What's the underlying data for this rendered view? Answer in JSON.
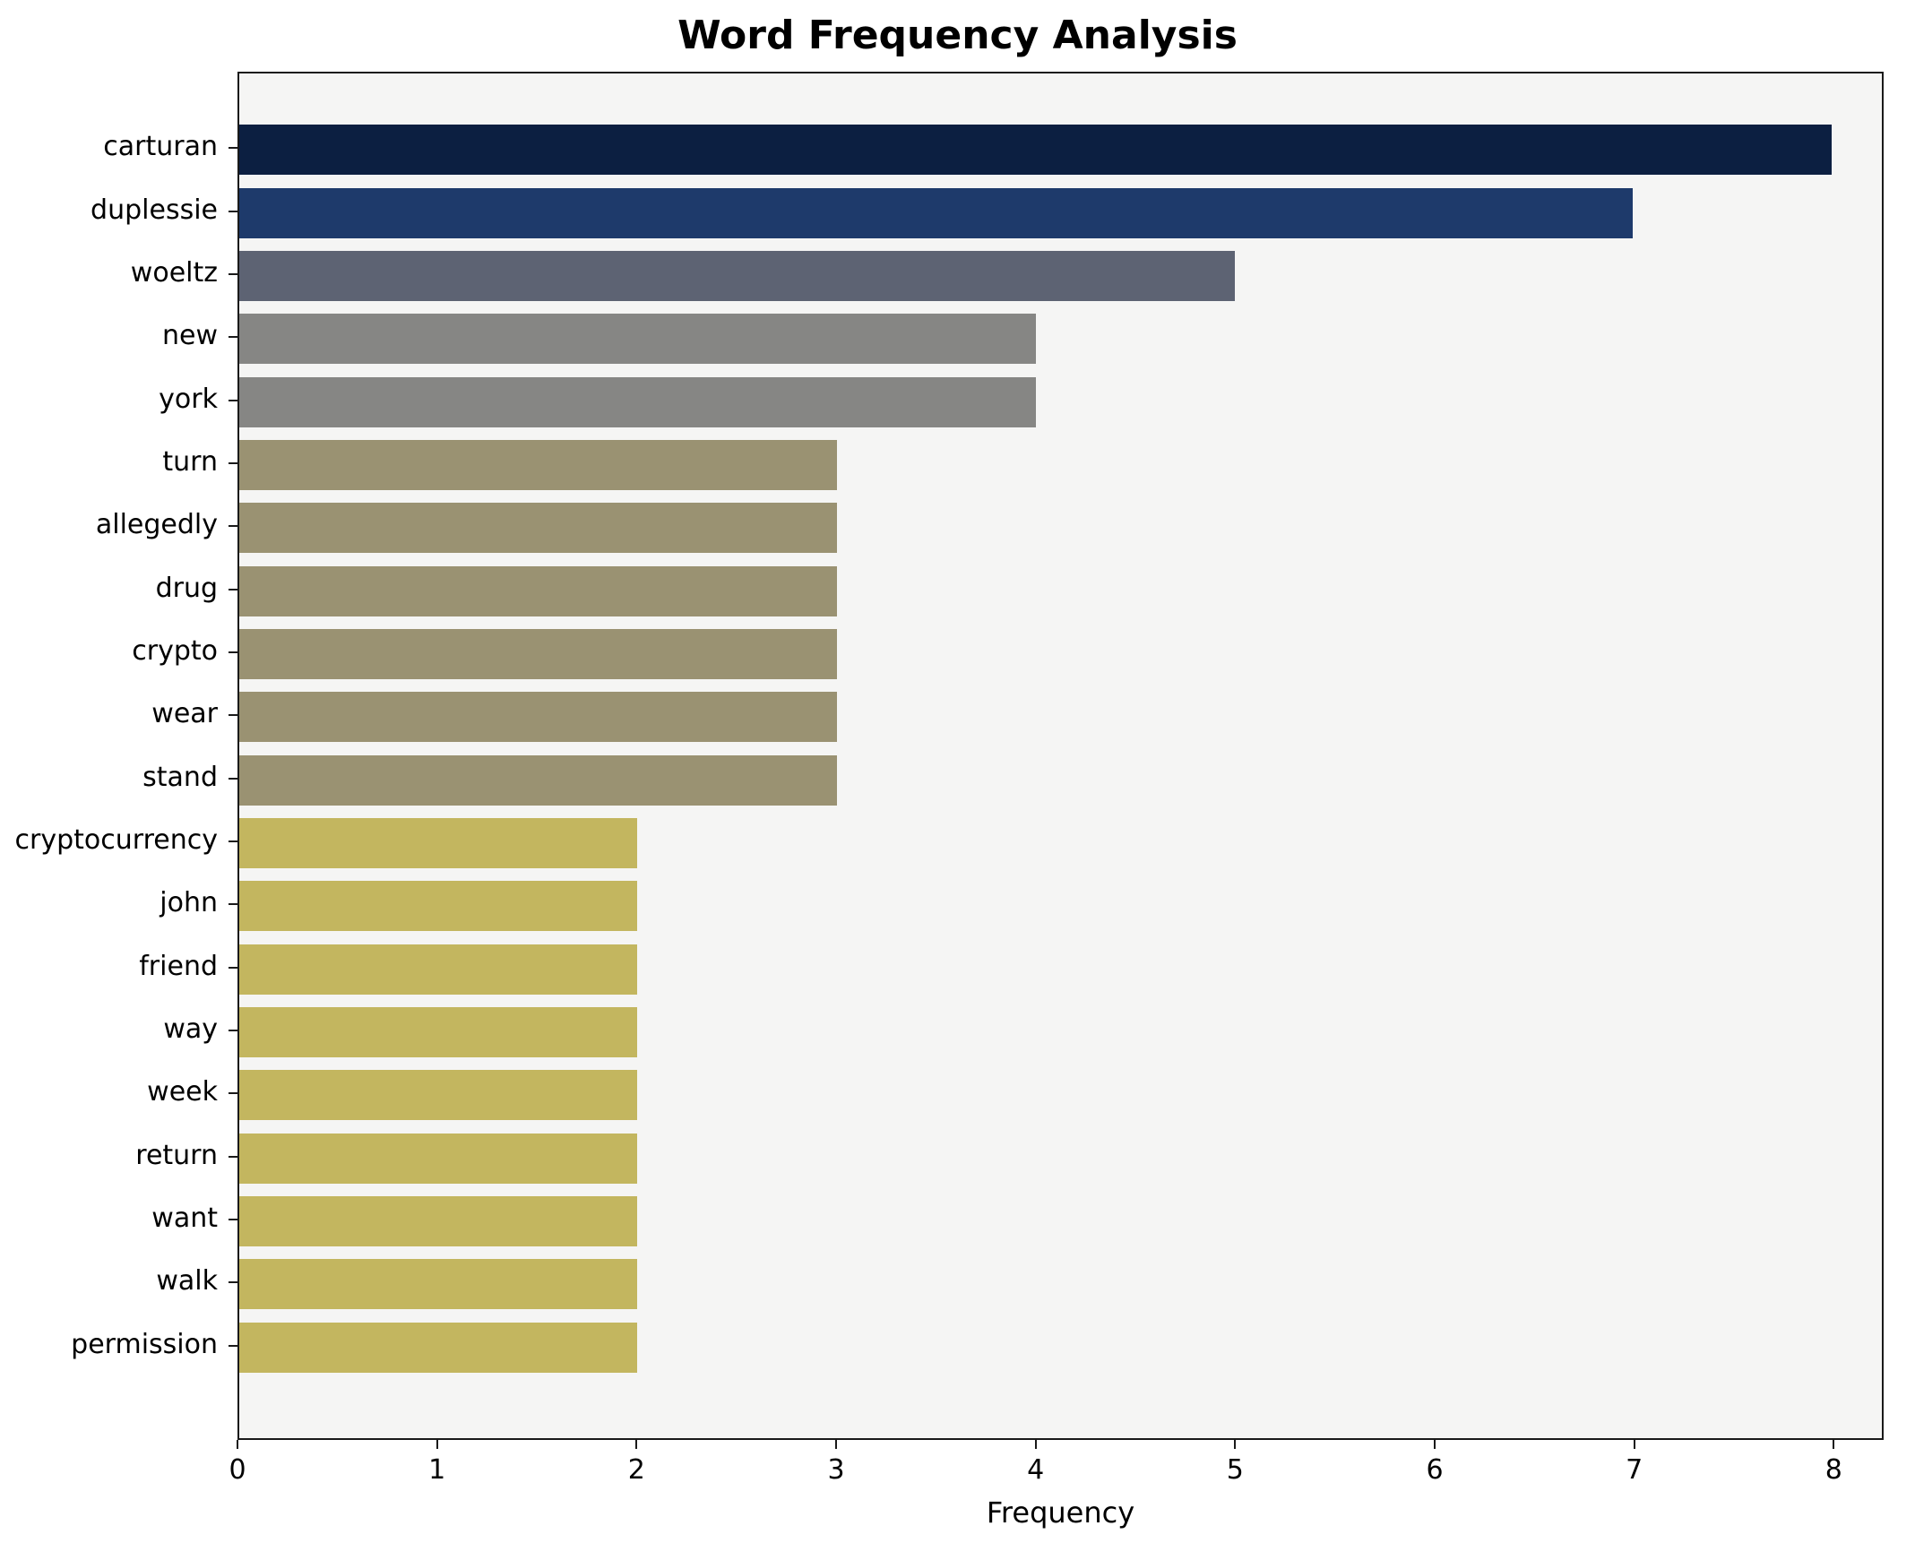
{
  "title": "Word Frequency Analysis",
  "chart_data": {
    "type": "bar",
    "orientation": "horizontal",
    "title": "Word Frequency Analysis",
    "xlabel": "Frequency",
    "ylabel": "",
    "categories": [
      "carturan",
      "duplessie",
      "woeltz",
      "new",
      "york",
      "turn",
      "allegedly",
      "drug",
      "crypto",
      "wear",
      "stand",
      "cryptocurrency",
      "john",
      "friend",
      "way",
      "week",
      "return",
      "want",
      "walk",
      "permission"
    ],
    "values": [
      8,
      7,
      5,
      4,
      4,
      3,
      3,
      3,
      3,
      3,
      3,
      2,
      2,
      2,
      2,
      2,
      2,
      2,
      2,
      2
    ],
    "colors": [
      "#0c1f41",
      "#1e3a6b",
      "#5d6373",
      "#868684",
      "#868684",
      "#9a9272",
      "#9a9272",
      "#9a9272",
      "#9a9272",
      "#9a9272",
      "#9a9272",
      "#c3b65f",
      "#c3b65f",
      "#c3b65f",
      "#c3b65f",
      "#c3b65f",
      "#c3b65f",
      "#c3b65f",
      "#c3b65f",
      "#c3b65f"
    ],
    "xlim": [
      0,
      8.25
    ],
    "xticks": [
      0,
      1,
      2,
      3,
      4,
      5,
      6,
      7,
      8
    ],
    "grid": false,
    "legend": false,
    "plot_background": "#f5f5f4"
  }
}
